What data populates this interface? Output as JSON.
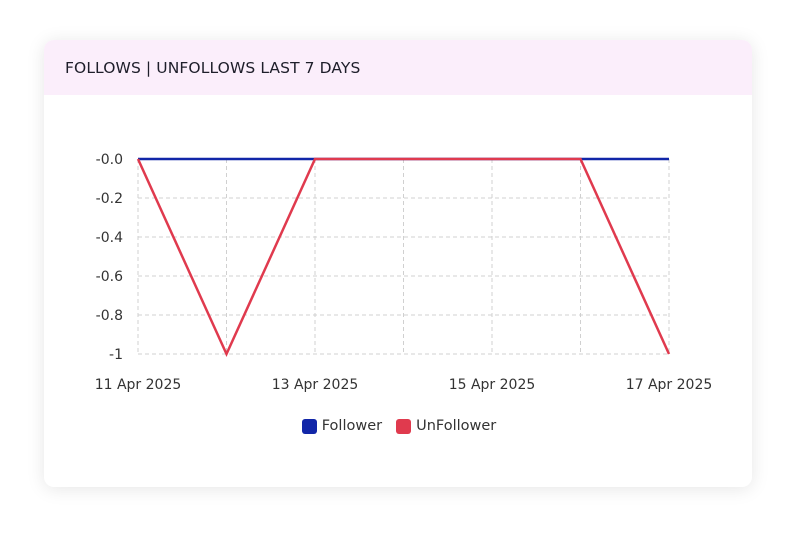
{
  "card": {
    "title": "FOLLOWS | UNFOLLOWS LAST 7 DAYS"
  },
  "chart_data": {
    "type": "line",
    "title": "",
    "x": [
      "11 Apr 2025",
      "12 Apr 2025",
      "13 Apr 2025",
      "14 Apr 2025",
      "15 Apr 2025",
      "16 Apr 2025",
      "17 Apr 2025"
    ],
    "x_tick_labels": [
      "11 Apr 2025",
      "13 Apr 2025",
      "15 Apr 2025",
      "17 Apr 2025"
    ],
    "y_tick_labels": [
      "-0.0",
      "-0.2",
      "-0.4",
      "-0.6",
      "-0.8",
      "-1"
    ],
    "ylim": [
      -1,
      0
    ],
    "grid": true,
    "legend": "bottom-center",
    "series": [
      {
        "name": "Follower",
        "color": "#1126a8",
        "values": [
          0,
          0,
          0,
          0,
          0,
          0,
          0
        ]
      },
      {
        "name": "UnFollower",
        "color": "#e03a4e",
        "values": [
          0,
          -1,
          0,
          0,
          0,
          0,
          -1
        ]
      }
    ]
  }
}
